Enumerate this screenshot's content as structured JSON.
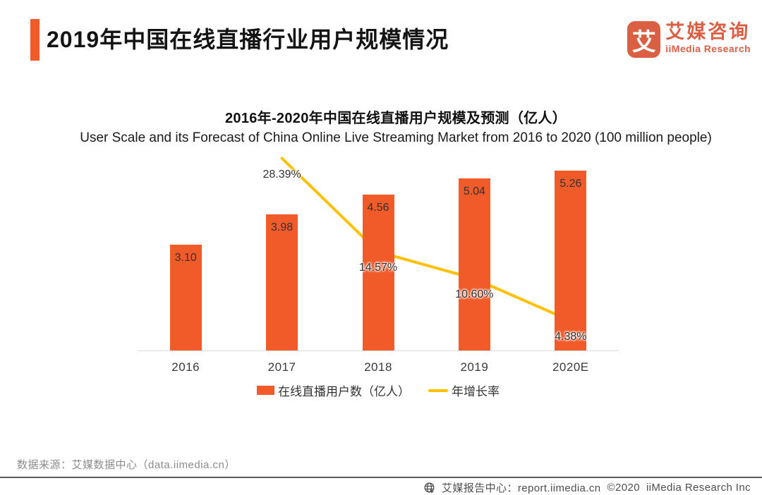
{
  "header": {
    "title": "2019年中国在线直播行业用户规模情况",
    "logo": {
      "glyph": "艾",
      "brand_cn": "艾媒咨询",
      "brand_en": "iiMedia Research"
    }
  },
  "chart_data": {
    "type": "bar",
    "combo": "bar+line",
    "title": "2016年-2020年中国在线直播用户规模及预测（亿人）",
    "subtitle": "User Scale and its Forecast of China Online Live Streaming Market from 2016 to 2020 (100 million people)",
    "categories": [
      "2016",
      "2017",
      "2018",
      "2019",
      "2020E"
    ],
    "series": [
      {
        "name": "在线直播用户数（亿人）",
        "type": "bar",
        "color": "#F15A29",
        "values": [
          3.1,
          3.98,
          4.56,
          5.04,
          5.26
        ],
        "labels": [
          "3.10",
          "3.98",
          "4.56",
          "5.04",
          "5.26"
        ]
      },
      {
        "name": "年增长率",
        "type": "line",
        "color": "#FFC000",
        "values": [
          null,
          28.39,
          14.57,
          10.6,
          4.38
        ],
        "labels": [
          null,
          "28.39%",
          "14.57%",
          "10.60%",
          "4.38%"
        ]
      }
    ],
    "bar_axis": {
      "min": 0,
      "max": 5.46,
      "visible": false
    },
    "line_axis": {
      "min": 0,
      "max": 30,
      "unit": "%",
      "visible": false
    },
    "grid": false,
    "legend_position": "bottom",
    "data_labels": true
  },
  "colors": {
    "accent": "#F15A29",
    "brand": "#DB5F43",
    "bar": "#F15A29",
    "line": "#FFC000"
  },
  "source": "数据来源：艾媒数据中心（data.iimedia.cn）",
  "footer": {
    "report_center": "艾媒报告中心：report.iimedia.cn",
    "copyright": "©2020",
    "company": "iiMedia Research Inc"
  }
}
